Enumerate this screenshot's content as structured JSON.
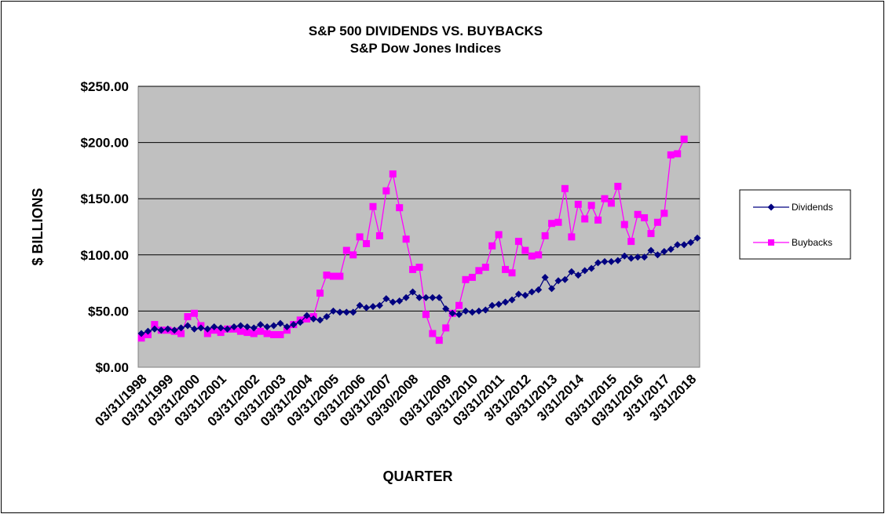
{
  "chart_data": {
    "type": "line",
    "title": "S&P 500 DIVIDENDS  VS. BUYBACKS",
    "subtitle": "S&P Dow Jones Indices",
    "xlabel": "QUARTER",
    "ylabel": "$ BILLIONS",
    "ylim": [
      0,
      250
    ],
    "yticks": [
      "$0.00",
      "$50.00",
      "$100.00",
      "$150.00",
      "$200.00",
      "$250.00"
    ],
    "ytick_values": [
      0,
      50,
      100,
      150,
      200,
      250
    ],
    "xtick_labels": [
      "03/31/1998",
      "03/31/1999",
      "03/31/2000",
      "03/31/2001",
      "03/31/2002",
      "03/31/2003",
      "03/31/2004",
      "03/31/2005",
      "03/31/2006",
      "03/31/2007",
      "03/30/2008",
      "03/31/2009",
      "03/31/2010",
      "03/31/2011",
      "3/31/2012",
      "03/31/2013",
      "3/31/2014",
      "03/31/2015",
      "03/31/2016",
      "3/31/2017",
      "3/31/2018"
    ],
    "grid": true,
    "background": "#C0C0C0",
    "legend_position": "right",
    "series": [
      {
        "name": "Dividends",
        "color": "#000080",
        "marker": "diamond",
        "values": [
          30,
          32,
          34,
          33,
          34,
          33,
          35,
          37,
          34,
          35,
          34,
          36,
          35,
          34,
          36,
          37,
          36,
          35,
          38,
          36,
          37,
          39,
          36,
          38,
          40,
          46,
          43,
          42,
          45,
          50,
          49,
          49,
          49,
          55,
          53,
          54,
          55,
          61,
          58,
          59,
          62,
          67,
          62,
          62,
          62,
          62,
          52,
          48,
          47,
          50,
          49,
          50,
          51,
          55,
          56,
          58,
          60,
          65,
          64,
          67,
          69,
          80,
          70,
          77,
          78,
          85,
          82,
          86,
          88,
          93,
          94,
          94,
          95,
          99,
          97,
          98,
          98,
          104,
          100,
          103,
          105,
          109,
          109,
          111,
          115
        ]
      },
      {
        "name": "Buybacks",
        "color": "#FF00FF",
        "marker": "square",
        "values": [
          26,
          29,
          38,
          33,
          33,
          32,
          30,
          45,
          48,
          37,
          30,
          33,
          31,
          34,
          34,
          32,
          31,
          30,
          32,
          30,
          29,
          29,
          33,
          38,
          42,
          43,
          45,
          66,
          82,
          81,
          81,
          104,
          100,
          116,
          110,
          143,
          117,
          157,
          172,
          142,
          114,
          87,
          89,
          47,
          30,
          24,
          35,
          48,
          55,
          78,
          80,
          86,
          89,
          108,
          118,
          87,
          84,
          112,
          104,
          99,
          100,
          117,
          128,
          129,
          159,
          116,
          145,
          132,
          144,
          131,
          150,
          146,
          161,
          127,
          112,
          136,
          133,
          119,
          129,
          137,
          189,
          190,
          203
        ]
      }
    ]
  }
}
